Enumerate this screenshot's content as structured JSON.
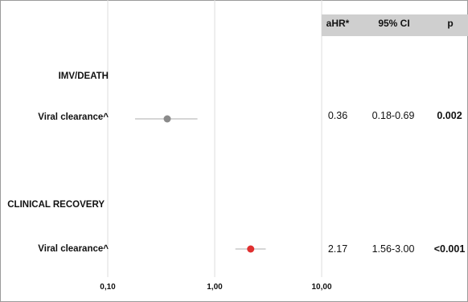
{
  "colors": {
    "header_bg": "#cfcfcf",
    "ci_line": "#c8c8c8",
    "gridline": "#dddddd",
    "point_imv": "#8a8a8a",
    "point_recovery": "#e03030"
  },
  "table": {
    "headers": [
      "aHR*",
      "95% CI",
      "p"
    ]
  },
  "groups": [
    {
      "label": "IMV/DEATH"
    },
    {
      "label": "CLINICAL RECOVERY"
    }
  ],
  "rows": [
    {
      "label": "Viral clearance^",
      "ahr": "0.36",
      "ci": "0.18-0.69",
      "p": "0.002"
    },
    {
      "label": "Viral clearance^",
      "ahr": "2.17",
      "ci": "1.56-3.00",
      "p": "<0.001"
    }
  ],
  "chart_data": {
    "type": "forest",
    "x_scale": "log",
    "xlim": [
      0.1,
      10
    ],
    "ticks": [
      {
        "value": 0.1,
        "label": "0,10"
      },
      {
        "value": 1,
        "label": "1,00"
      },
      {
        "value": 10,
        "label": "10,00"
      }
    ],
    "grid": true,
    "series": [
      {
        "estimate": 0.36,
        "lower": 0.18,
        "upper": 0.69
      },
      {
        "estimate": 2.17,
        "lower": 1.56,
        "upper": 3.0
      }
    ]
  }
}
